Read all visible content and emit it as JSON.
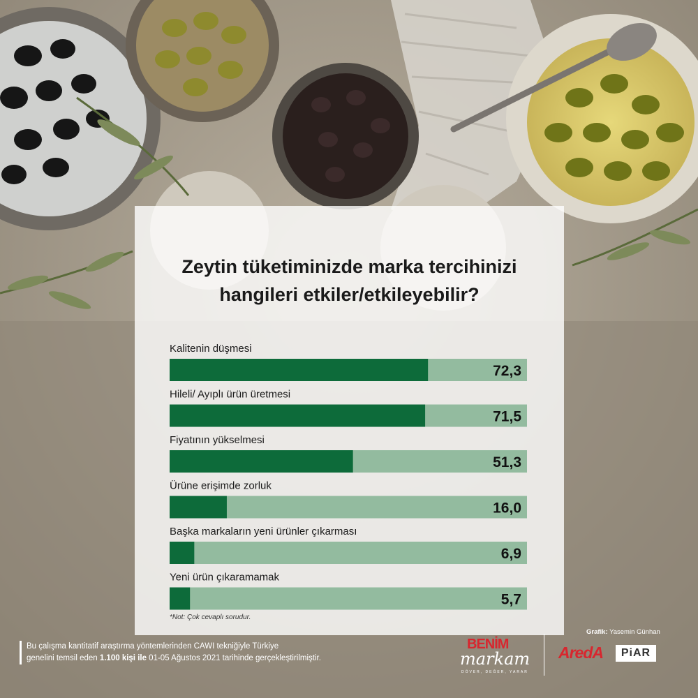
{
  "colors": {
    "bar_fill": "#0d6b3a",
    "bar_track": "#93bb9f",
    "value_text": "#111111",
    "label_text": "#1a1a1a"
  },
  "chart_data": {
    "type": "bar",
    "orientation": "horizontal",
    "title_lines": [
      "Zeytin tüketiminizde marka tercihinizi",
      "hangileri etkiler/etkileyebilir?"
    ],
    "categories": [
      "Kalitenin düşmesi",
      "Hileli/ Ayıplı ürün üretmesi",
      "Fiyatının yükselmesi",
      "Ürüne erişimde zorluk",
      "Başka markaların yeni ürünler çıkarması",
      "Yeni ürün çıkaramamak"
    ],
    "values": [
      72.3,
      71.5,
      51.3,
      16.0,
      6.9,
      5.7
    ],
    "value_labels": [
      "72,3",
      "71,5",
      "51,3",
      "16,0",
      "6,9",
      "5,7"
    ],
    "xlim": [
      0,
      100
    ],
    "grid": false,
    "legend": "none"
  },
  "note": "*Not: Çok cevaplı sorudur.",
  "footer": {
    "line1": "Bu çalışma kantitatif araştırma yöntemlerinden CAWI tekniğiyle Türkiye",
    "line2_pre": "genelini temsil eden ",
    "line2_bold": "1.100 kişi ile",
    "line2_post": " 01-05 Ağustos 2021 tarihinde gerçekleştirilmiştir."
  },
  "credit": {
    "label": "Grafik:",
    "name": "Yasemin Günhan"
  },
  "logos": {
    "benim_top": "BENİM",
    "benim_bottom": "markam",
    "benim_tagline": "DÖVER, DEĞER, YARAR",
    "areda": "AredA",
    "piar": "PiAR"
  }
}
